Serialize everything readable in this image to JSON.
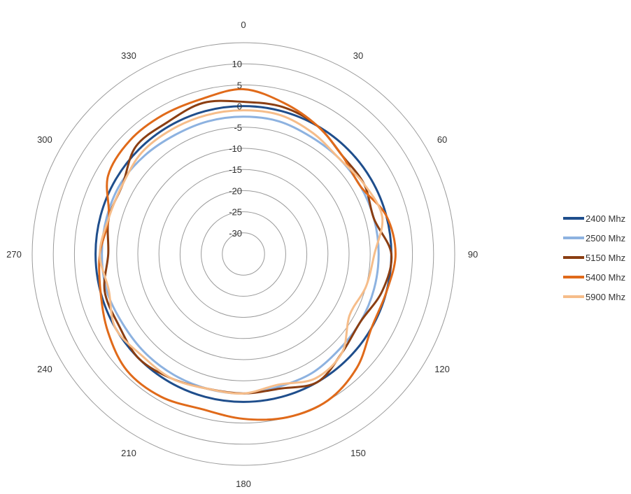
{
  "chart_data": {
    "type": "polar-line",
    "title": "",
    "angle_unit": "degrees",
    "angle_direction": "clockwise",
    "angle_zero": "top",
    "angle_ticks": [
      "0",
      "30",
      "60",
      "90",
      "120",
      "150",
      "180",
      "210",
      "240",
      "270",
      "300",
      "330"
    ],
    "radial_ticks": [
      "-30",
      "-25",
      "-20",
      "-15",
      "-10",
      "-5",
      "0",
      "5",
      "10"
    ],
    "rlim": [
      -35,
      15
    ],
    "grid": true,
    "legend_position": "right",
    "angles": [
      0,
      15,
      30,
      45,
      60,
      75,
      90,
      105,
      120,
      135,
      150,
      165,
      180,
      195,
      210,
      225,
      240,
      255,
      270,
      285,
      300,
      315,
      330,
      345
    ],
    "series": [
      {
        "name": "2400 Mhz",
        "color": "#1f4e8c",
        "values": [
          0,
          0,
          0,
          0,
          0,
          0,
          0,
          0,
          0,
          0,
          0,
          0,
          0,
          0,
          0,
          0,
          0,
          0,
          0,
          0,
          0,
          0,
          0,
          0
        ]
      },
      {
        "name": "2500 Mhz",
        "color": "#8db2e0",
        "values": [
          -2.5,
          -2.5,
          -3,
          -3,
          -3,
          -3,
          -3,
          -3,
          -3,
          -3,
          -2.5,
          -2.5,
          -2,
          -2,
          -2,
          -2,
          -2,
          -1.5,
          -1.5,
          -1.5,
          -1.5,
          -2,
          -2.5,
          -2.5
        ]
      },
      {
        "name": "5150 Mhz",
        "color": "#8b3e12",
        "values": [
          1,
          1,
          0,
          -2,
          -2,
          -3,
          0,
          -1,
          -3,
          -2,
          0,
          -2,
          -2,
          -2,
          -1,
          0,
          -1,
          -1,
          -3,
          -2,
          -2,
          1,
          1,
          2
        ]
      },
      {
        "name": "5400 Mhz",
        "color": "#e06a1a",
        "values": [
          4,
          2,
          0,
          -2,
          -3,
          0,
          1,
          0,
          0,
          3,
          5,
          5,
          4,
          3,
          4,
          4,
          2,
          0,
          -1,
          -2,
          2,
          3,
          3,
          3
        ]
      },
      {
        "name": "5900 Mhz",
        "color": "#f6bd8a",
        "values": [
          -1,
          -1,
          -2,
          -3,
          -2,
          -1,
          -4,
          -5,
          -6,
          -2,
          -1,
          -3,
          -2,
          -2,
          -1,
          -1,
          0,
          -2,
          -1,
          -2,
          -2,
          -1,
          -1,
          -1
        ]
      }
    ]
  }
}
